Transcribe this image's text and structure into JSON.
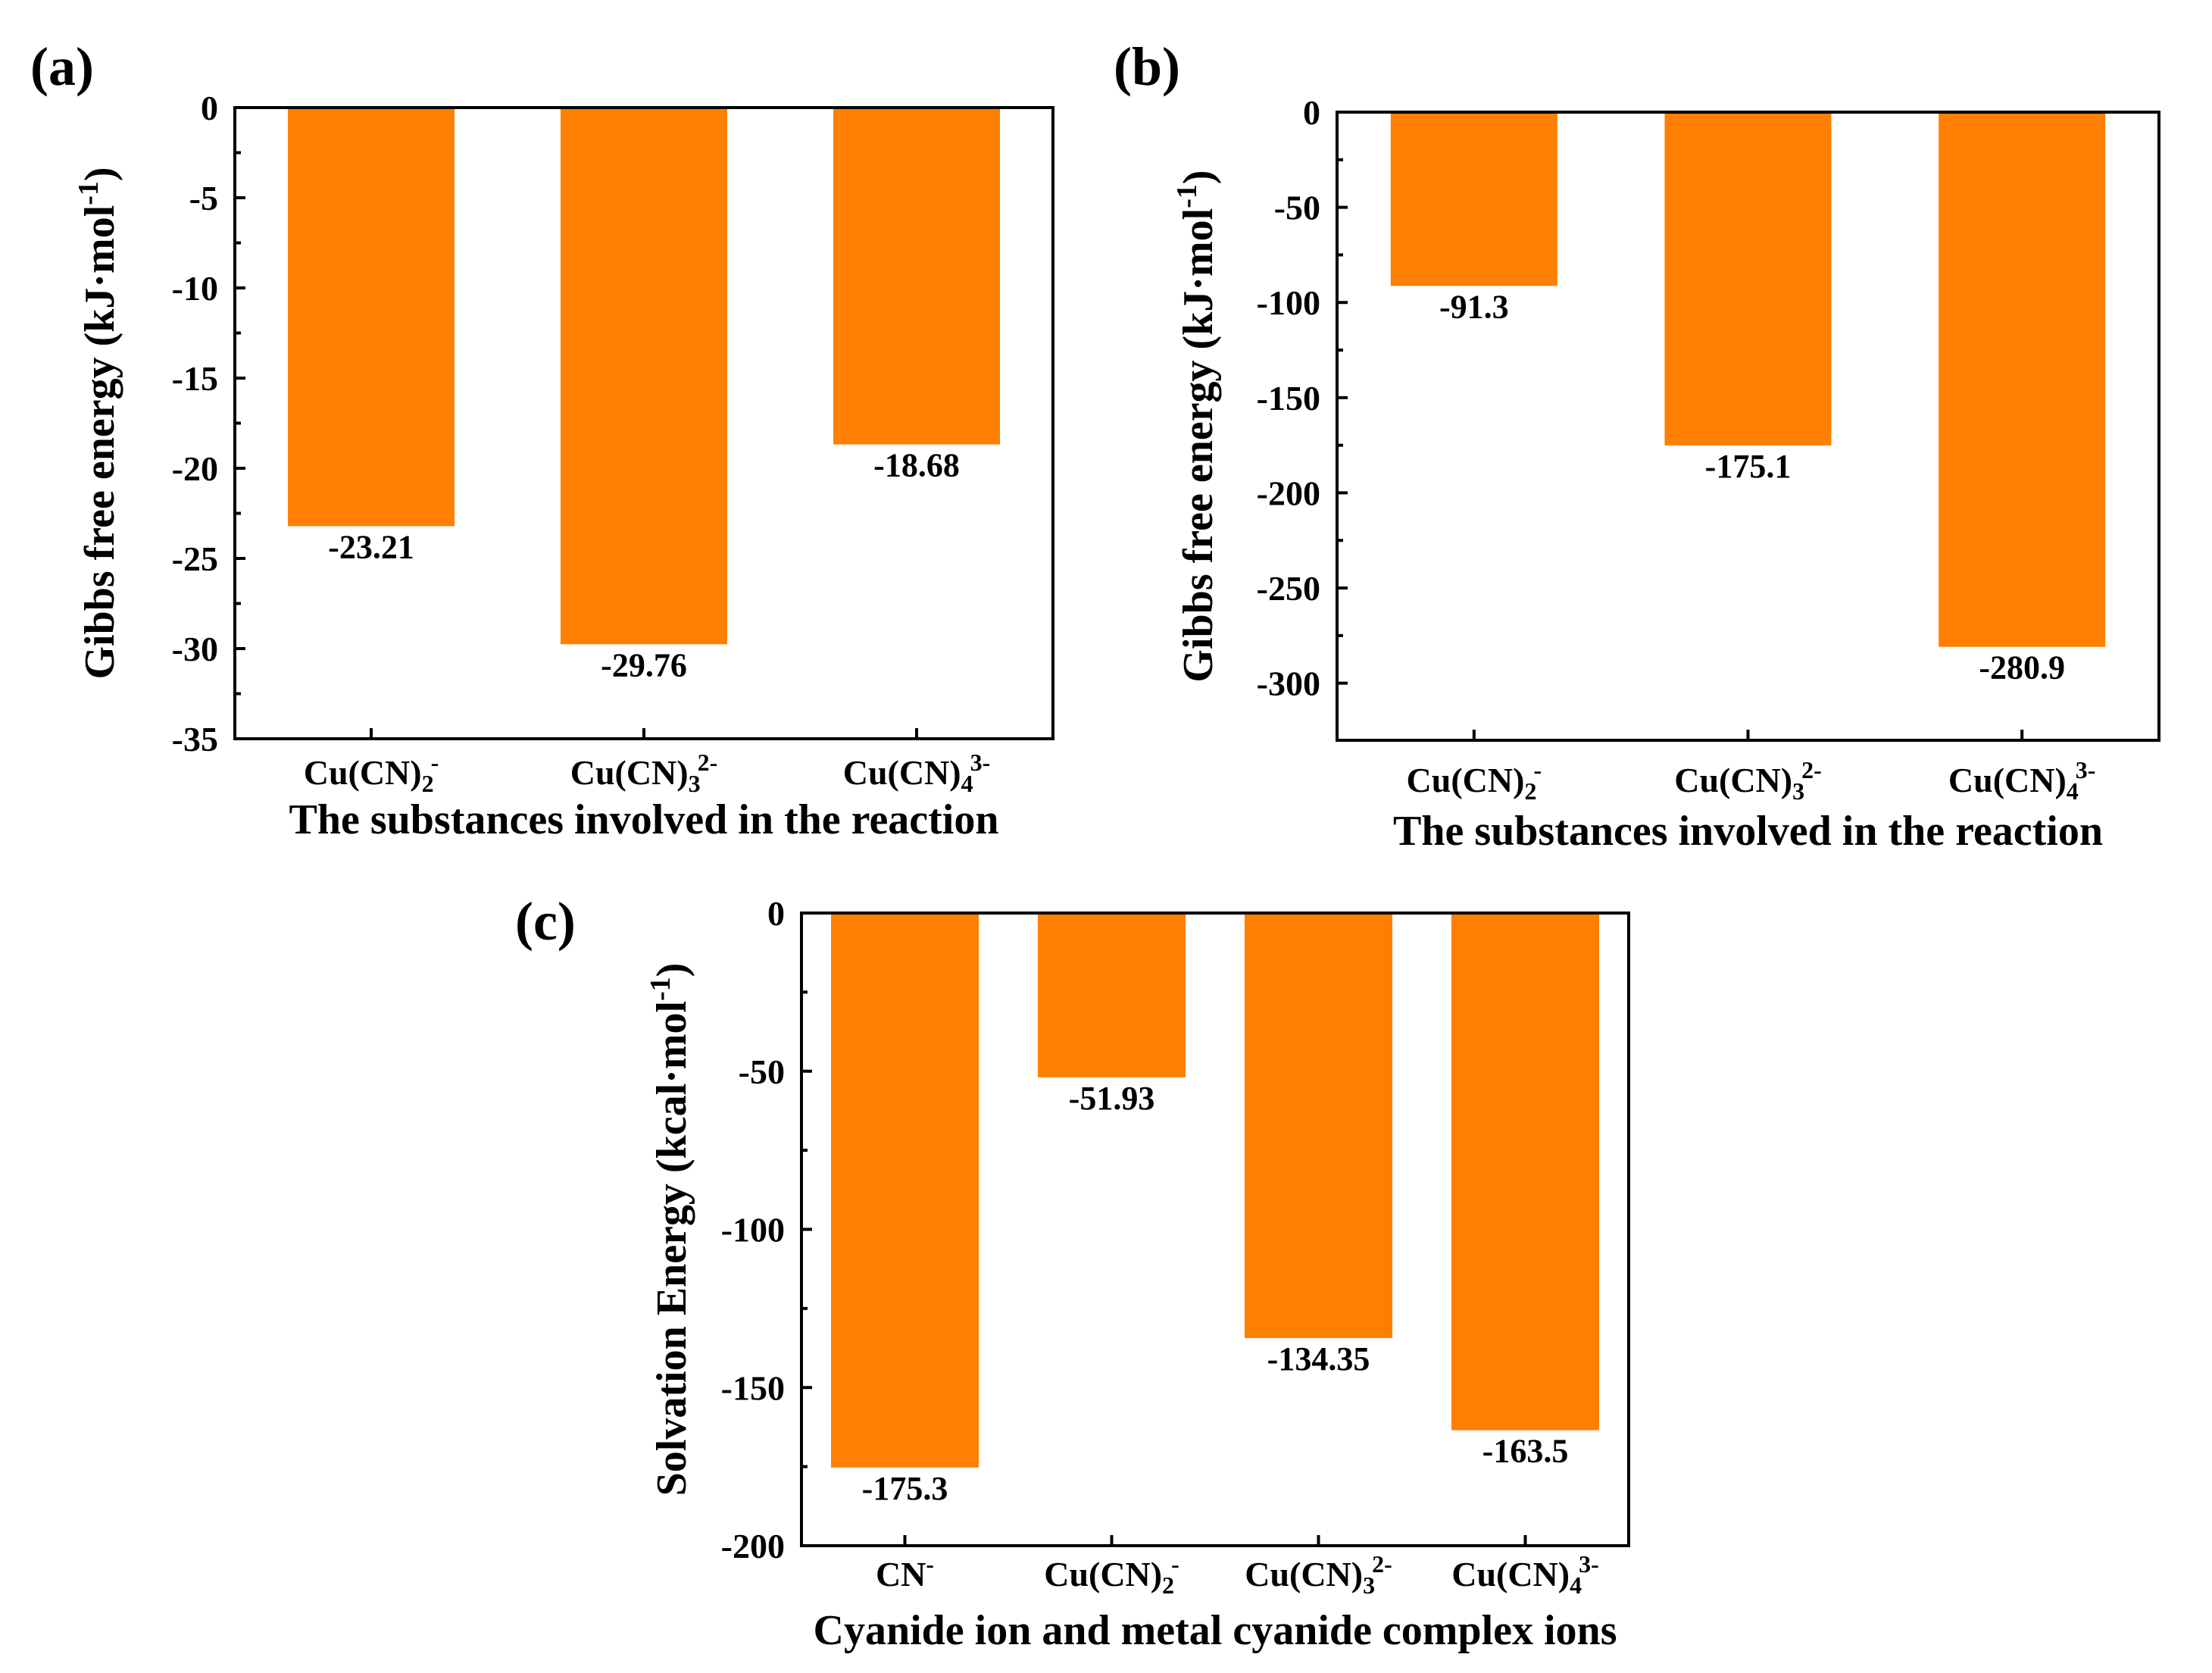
{
  "colors": {
    "bar": "#FF7F00",
    "axis": "#000000"
  },
  "chart_data": [
    {
      "type": "bar",
      "panel_label": "(a)",
      "categories": [
        {
          "base": "Cu(CN)",
          "sub": "2",
          "sup": "-"
        },
        {
          "base": "Cu(CN)",
          "sub": "3",
          "sup": "2-"
        },
        {
          "base": "Cu(CN)",
          "sub": "4",
          "sup": "3-"
        }
      ],
      "values": [
        -23.21,
        -29.76,
        -18.68
      ],
      "value_labels": [
        "-23.21",
        "-29.76",
        "-18.68"
      ],
      "ylim": [
        -35,
        0
      ],
      "yticks": [
        0,
        -5,
        -10,
        -15,
        -20,
        -25,
        -30,
        -35
      ],
      "xlabel": "The substances involved in the reaction",
      "ylabel": {
        "text": "Gibbs free energy (kJ·mol",
        "sup": "-1",
        "close": ")"
      }
    },
    {
      "type": "bar",
      "panel_label": "(b)",
      "categories": [
        {
          "base": "Cu(CN)",
          "sub": "2",
          "sup": "-"
        },
        {
          "base": "Cu(CN)",
          "sub": "3",
          "sup": "2-"
        },
        {
          "base": "Cu(CN)",
          "sub": "4",
          "sup": "3-"
        }
      ],
      "values": [
        -91.3,
        -175.1,
        -280.9
      ],
      "value_labels": [
        "-91.3",
        "-175.1",
        "-280.9"
      ],
      "ylim": [
        -330,
        0
      ],
      "yticks": [
        0,
        -50,
        -100,
        -150,
        -200,
        -250,
        -300
      ],
      "xlabel": "The substances involved in the reaction",
      "ylabel": {
        "text": "Gibbs free energy (kJ·mol",
        "sup": "-1",
        "close": ")"
      }
    },
    {
      "type": "bar",
      "panel_label": "(c)",
      "categories": [
        {
          "base": "CN",
          "sub": "",
          "sup": "-"
        },
        {
          "base": "Cu(CN)",
          "sub": "2",
          "sup": "-"
        },
        {
          "base": "Cu(CN)",
          "sub": "3",
          "sup": "2-"
        },
        {
          "base": "Cu(CN)",
          "sub": "4",
          "sup": "3-"
        }
      ],
      "values": [
        -175.3,
        -51.93,
        -134.35,
        -163.5
      ],
      "value_labels": [
        "-175.3",
        "-51.93",
        "-134.35",
        "-163.5"
      ],
      "ylim": [
        -200,
        0
      ],
      "yticks": [
        0,
        -50,
        -100,
        -150,
        -200
      ],
      "xlabel": "Cyanide ion and metal cyanide complex ions",
      "ylabel": {
        "text": "Solvation Energy (kcal·mol",
        "sup": "-1",
        "close": ")"
      }
    }
  ]
}
